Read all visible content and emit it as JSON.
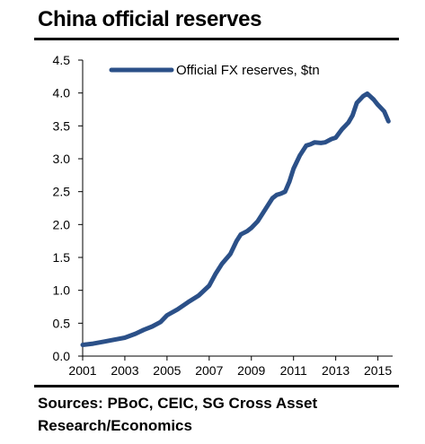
{
  "header": {
    "title": "China official reserves"
  },
  "footer": {
    "sources": "Sources: PBoC, CEIC, SG Cross Asset Research/Economics"
  },
  "colors": {
    "series": "#2b5088",
    "axis": "#000000"
  },
  "chart_data": {
    "type": "line",
    "title": "China official reserves",
    "xlabel": "",
    "ylabel": "",
    "xlim": [
      2001,
      2015.7
    ],
    "ylim": [
      0,
      4.5
    ],
    "grid": false,
    "legend_position": "top-left",
    "x_ticks": [
      "2001",
      "2003",
      "2005",
      "2007",
      "2009",
      "2011",
      "2013",
      "2015"
    ],
    "y_ticks": [
      "0.0",
      "0.5",
      "1.0",
      "1.5",
      "2.0",
      "2.5",
      "3.0",
      "3.5",
      "4.0",
      "4.5"
    ],
    "series": [
      {
        "name": "Official FX reserves, $tn",
        "x": [
          2001.0,
          2001.5,
          2002.0,
          2002.5,
          2003.0,
          2003.5,
          2003.9,
          2004.3,
          2004.7,
          2005.0,
          2005.5,
          2006.0,
          2006.5,
          2007.0,
          2007.3,
          2007.6,
          2008.0,
          2008.3,
          2008.5,
          2008.8,
          2009.0,
          2009.3,
          2009.5,
          2009.8,
          2010.0,
          2010.2,
          2010.4,
          2010.6,
          2010.8,
          2011.0,
          2011.3,
          2011.6,
          2011.8,
          2012.0,
          2012.3,
          2012.5,
          2012.8,
          2013.0,
          2013.3,
          2013.6,
          2013.8,
          2014.0,
          2014.3,
          2014.5,
          2014.8,
          2015.0,
          2015.3,
          2015.5
        ],
        "values": [
          0.17,
          0.19,
          0.22,
          0.25,
          0.28,
          0.34,
          0.4,
          0.45,
          0.52,
          0.62,
          0.71,
          0.82,
          0.92,
          1.07,
          1.25,
          1.4,
          1.55,
          1.75,
          1.85,
          1.9,
          1.95,
          2.05,
          2.15,
          2.3,
          2.4,
          2.45,
          2.47,
          2.5,
          2.65,
          2.85,
          3.05,
          3.2,
          3.22,
          3.25,
          3.24,
          3.25,
          3.3,
          3.32,
          3.45,
          3.55,
          3.66,
          3.85,
          3.95,
          3.99,
          3.9,
          3.82,
          3.72,
          3.57
        ]
      }
    ]
  }
}
